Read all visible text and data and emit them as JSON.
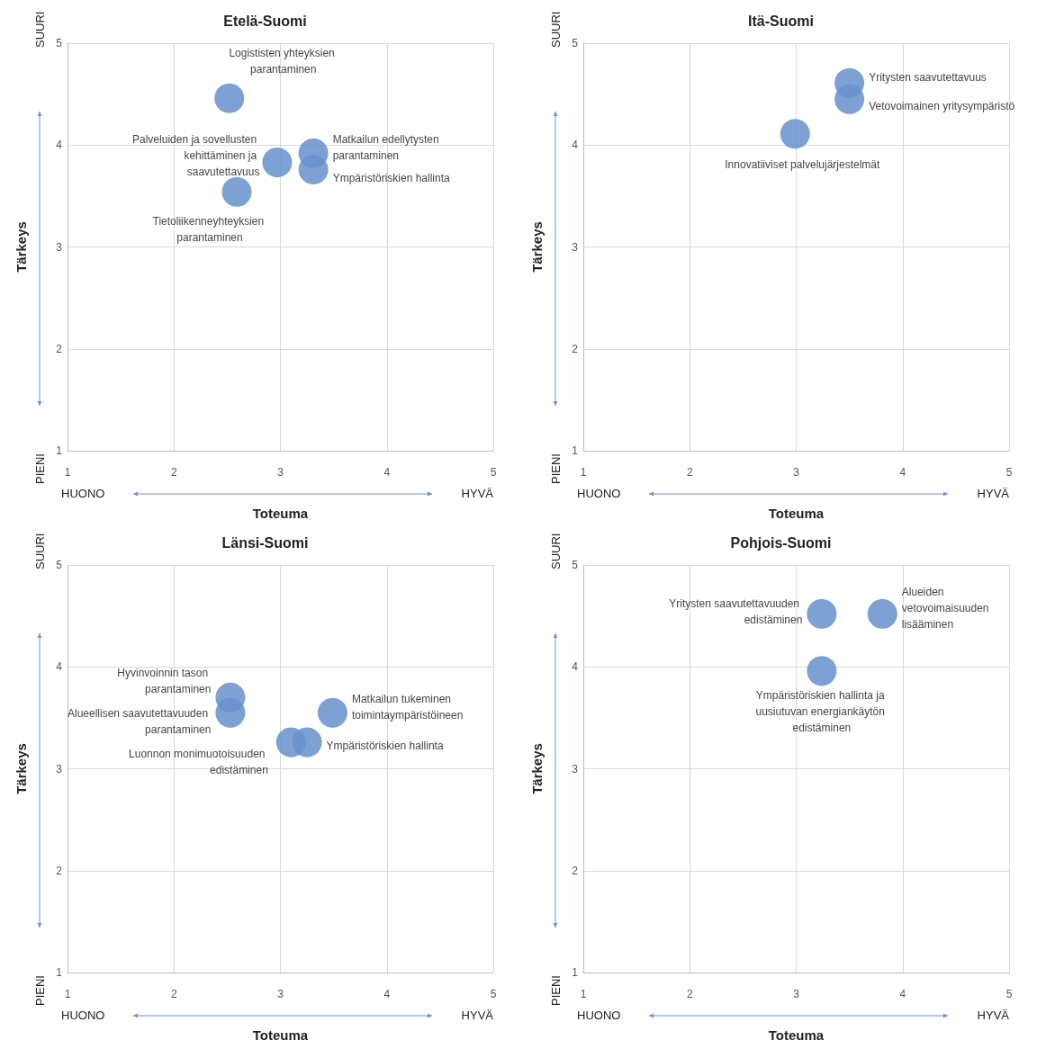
{
  "chart_data": [
    {
      "type": "scatter",
      "title": "Etelä-Suomi",
      "xlabel": "Toteuma",
      "ylabel": "Tärkeys",
      "xlim": [
        1,
        5
      ],
      "ylim": [
        1,
        5
      ],
      "xticks": [
        1,
        2,
        3,
        4,
        5
      ],
      "yticks": [
        1,
        2,
        3,
        4,
        5
      ],
      "grid": true,
      "marker": "circle",
      "annotations": [
        "HUONO",
        "HYVÄ",
        "SUURI",
        "PIENI"
      ],
      "series": [
        {
          "name": "Logististen yhteyksien parantaminen",
          "color": "#6790cc",
          "x": [
            2.52
          ],
          "values": [
            4.46
          ]
        },
        {
          "name": "Palveluiden ja sovellusten kehittäminen ja saavutettavuus",
          "color": "#6790cc",
          "x": [
            2.97
          ],
          "values": [
            3.83
          ]
        },
        {
          "name": "Matkailun edellytysten parantaminen",
          "color": "#6790cc",
          "x": [
            3.31
          ],
          "values": [
            3.92
          ]
        },
        {
          "name": "Ympäristöriskien hallinta",
          "color": "#6790cc",
          "x": [
            3.31
          ],
          "values": [
            3.76
          ]
        },
        {
          "name": "Tietoliikenneyhteyksien parantaminen",
          "color": "#6790cc",
          "x": [
            2.59
          ],
          "values": [
            3.54
          ]
        }
      ]
    },
    {
      "type": "scatter",
      "title": "Itä-Suomi",
      "xlabel": "Toteuma",
      "ylabel": "Tärkeys",
      "xlim": [
        1,
        5
      ],
      "ylim": [
        1,
        5
      ],
      "xticks": [
        1,
        2,
        3,
        4,
        5
      ],
      "yticks": [
        1,
        2,
        3,
        4,
        5
      ],
      "grid": true,
      "marker": "circle",
      "annotations": [
        "HUONO",
        "HYVÄ",
        "SUURI",
        "PIENI"
      ],
      "series": [
        {
          "name": "Yritysten saavutettavuus",
          "color": "#6790cc",
          "x": [
            3.5
          ],
          "values": [
            4.61
          ]
        },
        {
          "name": "Vetovoimainen yritysympäristö",
          "color": "#6790cc",
          "x": [
            3.5
          ],
          "values": [
            4.45
          ]
        },
        {
          "name": "Innovatiiviset palvelujärjestelmät",
          "color": "#6790cc",
          "x": [
            2.99
          ],
          "values": [
            4.11
          ]
        }
      ]
    },
    {
      "type": "scatter",
      "title": "Länsi-Suomi",
      "xlabel": "Toteuma",
      "ylabel": "Tärkeys",
      "xlim": [
        1,
        5
      ],
      "ylim": [
        1,
        5
      ],
      "xticks": [
        1,
        2,
        3,
        4,
        5
      ],
      "yticks": [
        1,
        2,
        3,
        4,
        5
      ],
      "grid": true,
      "marker": "circle",
      "annotations": [
        "HUONO",
        "HYVÄ",
        "SUURI",
        "PIENI"
      ],
      "series": [
        {
          "name": "Hyvinvoinnin tason parantaminen",
          "color": "#6790cc",
          "x": [
            2.53
          ],
          "values": [
            3.7
          ]
        },
        {
          "name": "Alueellisen saavutettavuuden parantaminen",
          "color": "#6790cc",
          "x": [
            2.53
          ],
          "values": [
            3.55
          ]
        },
        {
          "name": "Matkailun tukeminen toimintaympäristöineen",
          "color": "#6790cc",
          "x": [
            3.49
          ],
          "values": [
            3.55
          ]
        },
        {
          "name": "Luonnon monimuotoisuuden edistäminen",
          "color": "#6790cc",
          "x": [
            3.1
          ],
          "values": [
            3.26
          ]
        },
        {
          "name": "Ympäristöriskien hallinta",
          "color": "#6790cc",
          "x": [
            3.25
          ],
          "values": [
            3.26
          ]
        }
      ]
    },
    {
      "type": "scatter",
      "title": "Pohjois-Suomi",
      "xlabel": "Toteuma",
      "ylabel": "Tärkeys",
      "xlim": [
        1,
        5
      ],
      "ylim": [
        1,
        5
      ],
      "xticks": [
        1,
        2,
        3,
        4,
        5
      ],
      "yticks": [
        1,
        2,
        3,
        4,
        5
      ],
      "grid": true,
      "marker": "circle",
      "annotations": [
        "HUONO",
        "HYVÄ",
        "SUURI",
        "PIENI"
      ],
      "series": [
        {
          "name": "Yritysten saavutettavuuden edistäminen",
          "color": "#6790cc",
          "x": [
            3.24
          ],
          "values": [
            4.52
          ]
        },
        {
          "name": "Alueiden vetovoimaisuuden lisääminen",
          "color": "#6790cc",
          "x": [
            3.81
          ],
          "values": [
            4.52
          ]
        },
        {
          "name": "Ympäristöriskien hallinta ja uusiutuvan energiankäytön edistäminen",
          "color": "#6790cc",
          "x": [
            3.24
          ],
          "values": [
            3.96
          ]
        }
      ]
    }
  ]
}
